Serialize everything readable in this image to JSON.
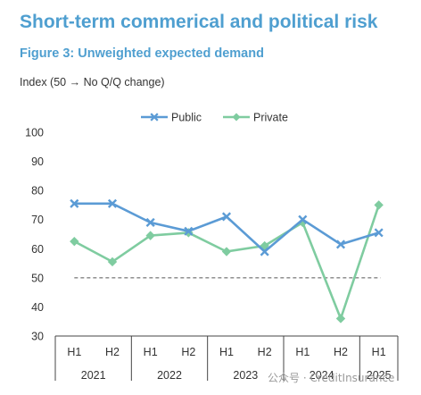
{
  "header": {
    "title": "Short-term commerical and political risk",
    "subtitle": "Figure 3: Unweighted expected demand",
    "axis_caption": "Index (50 → No Q/Q change)"
  },
  "watermark": {
    "text": "公众号 · CreditInsurance"
  },
  "colors": {
    "title": "#4f9fd0",
    "public": "#5b9bd5",
    "private": "#7fcca0",
    "reference": "#555555"
  },
  "chart_data": {
    "type": "line",
    "title": "Figure 3: Unweighted expected demand",
    "ylabel": "Index (50 → No Q/Q change)",
    "ylim": [
      30,
      100
    ],
    "yticks": [
      "30",
      "40",
      "50",
      "60",
      "70",
      "80",
      "90",
      "100"
    ],
    "categories": [
      "H1",
      "H2",
      "H1",
      "H2",
      "H1",
      "H2",
      "H1",
      "H2",
      "H1"
    ],
    "groups": [
      {
        "label": "2021",
        "count": 2
      },
      {
        "label": "2022",
        "count": 2
      },
      {
        "label": "2023",
        "count": 2
      },
      {
        "label": "2024",
        "count": 2
      },
      {
        "label": "2025",
        "count": 1
      }
    ],
    "reference_line": 50,
    "legend_position": "top-center",
    "grid": false,
    "series": [
      {
        "name": "Public",
        "marker": "cross",
        "color": "#5b9bd5",
        "values": [
          75.5,
          75.5,
          69,
          66,
          71,
          59,
          70,
          61.5,
          65.5
        ]
      },
      {
        "name": "Private",
        "marker": "diamond",
        "color": "#7fcca0",
        "values": [
          62.5,
          55.5,
          64.5,
          65.5,
          59,
          61,
          69,
          36,
          75
        ]
      }
    ]
  }
}
